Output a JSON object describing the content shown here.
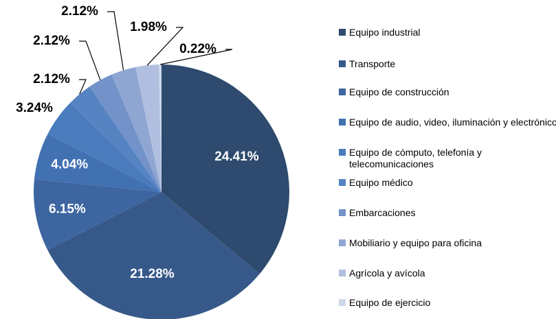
{
  "chart_data": {
    "type": "pie",
    "categories": [
      "Equipo industrial",
      "Transporte",
      "Equipo de construcción",
      "Equipo de audio, video, iluminación y electrónico",
      "Equipo de cómputo, telefonía y telecomunicaciones",
      "Equipo médico",
      "Embarcaciones",
      "Mobiliario y equipo para oficina",
      "Agrícola y avícola",
      "Equipo de ejercicio"
    ],
    "values": [
      24.41,
      21.28,
      6.15,
      4.04,
      3.24,
      2.12,
      2.12,
      2.12,
      1.98,
      0.22
    ],
    "value_labels": [
      "24.41%",
      "21.28%",
      "6.15%",
      "4.04%",
      "3.24%",
      "2.12%",
      "2.12%",
      "2.12%",
      "1.98%",
      "0.22%"
    ],
    "colors": [
      "#2e4a6e",
      "#37598a",
      "#3d65a0",
      "#4271b2",
      "#4a7bbd",
      "#5684c3",
      "#7292c9",
      "#8fa6d2",
      "#b0bfdf",
      "#cfd9ec"
    ],
    "legend": "right"
  }
}
